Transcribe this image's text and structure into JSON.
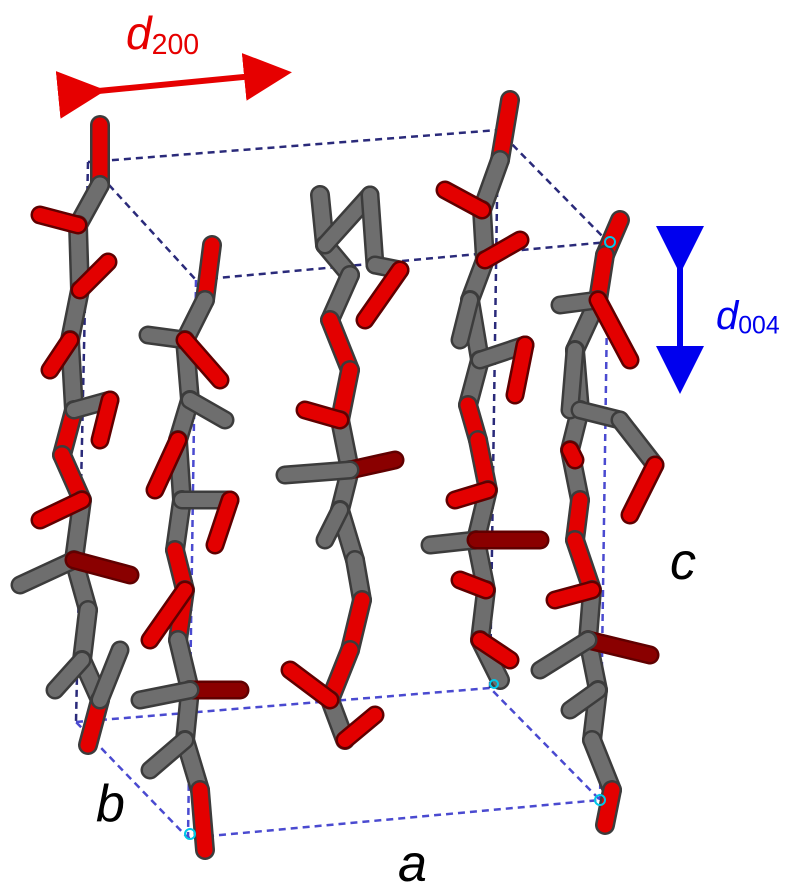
{
  "colors": {
    "carbon": "#6e6e6e",
    "carbon_dark": "#3c3c3c",
    "oxygen": "#e30000",
    "oxygen_dark": "#8a0000",
    "cell_edge": "#2a2a7a",
    "d200_color": "#e60000",
    "d004_color": "#0000ee",
    "axis_label_color": "#000000"
  },
  "labels": {
    "d200": {
      "main": "d",
      "sub": "200"
    },
    "d004": {
      "main": "d",
      "sub": "004"
    },
    "axis_a": "a",
    "axis_b": "b",
    "axis_c": "c"
  }
}
